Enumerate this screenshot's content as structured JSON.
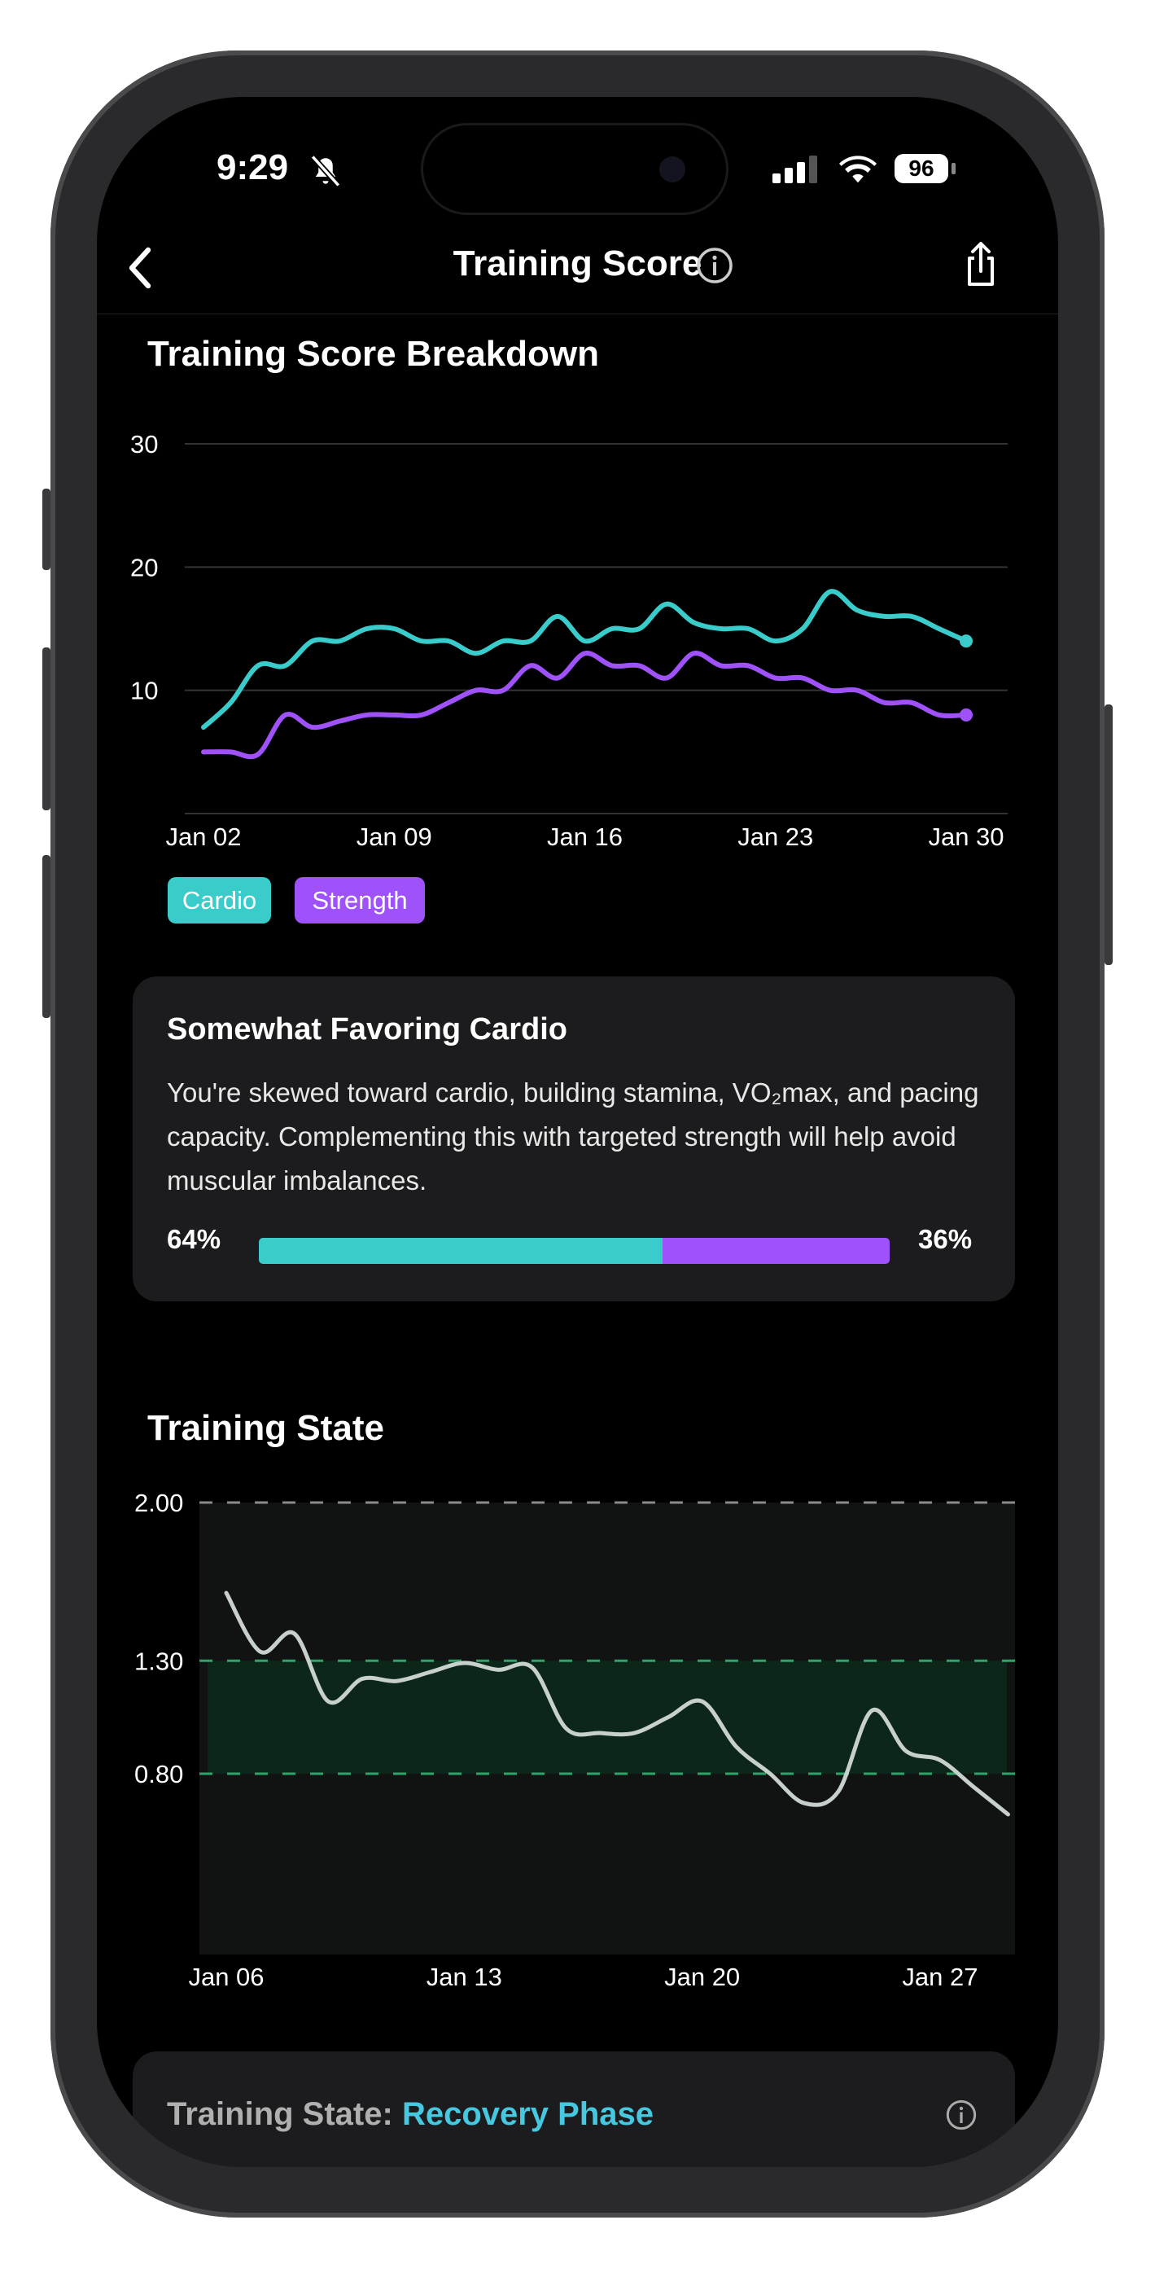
{
  "status_bar": {
    "time": "9:29",
    "battery": "96",
    "icons": [
      "bell-slash-icon",
      "signal-icon",
      "wifi-icon",
      "battery-icon"
    ]
  },
  "nav": {
    "title": "Training Score",
    "back_icon": "chevron-left-icon",
    "info_icon": "info-icon",
    "share_icon": "share-icon"
  },
  "breakdown": {
    "title": "Training Score Breakdown",
    "legend": [
      {
        "label": "Cardio",
        "color": "#3ACBCB"
      },
      {
        "label": "Strength",
        "color": "#A052FA"
      }
    ]
  },
  "balance_card": {
    "title": "Somewhat Favoring Cardio",
    "body": "You're skewed toward cardio, building stamina, VO₂max, and pacing capacity. Complementing this with targeted strength will help avoid muscular imbalances.",
    "cardio_pct_label": "64%",
    "strength_pct_label": "36%",
    "cardio_fraction": 0.64
  },
  "training_state": {
    "title": "Training State"
  },
  "state_card": {
    "label": "Training State:",
    "value": "Recovery Phase",
    "value_color": "#45C8E0"
  },
  "chart_data": [
    {
      "type": "line",
      "x": [
        "Jan 02",
        "Jan 03",
        "Jan 04",
        "Jan 05",
        "Jan 06",
        "Jan 07",
        "Jan 08",
        "Jan 09",
        "Jan 10",
        "Jan 11",
        "Jan 12",
        "Jan 13",
        "Jan 14",
        "Jan 15",
        "Jan 16",
        "Jan 17",
        "Jan 18",
        "Jan 19",
        "Jan 20",
        "Jan 21",
        "Jan 22",
        "Jan 23",
        "Jan 24",
        "Jan 25",
        "Jan 26",
        "Jan 27",
        "Jan 28",
        "Jan 29",
        "Jan 30"
      ],
      "xticks": [
        "Jan 02",
        "Jan 09",
        "Jan 16",
        "Jan 23",
        "Jan 30"
      ],
      "yticks": [
        "10",
        "20",
        "30"
      ],
      "ylim": [
        0,
        30
      ],
      "grid": true,
      "series": [
        {
          "name": "Cardio",
          "color": "#3ACBCB",
          "values": [
            7,
            9,
            12,
            12,
            14,
            14,
            15,
            15,
            14,
            14,
            13,
            14,
            14,
            16,
            14,
            15,
            15,
            17,
            15.5,
            15,
            15,
            14,
            15,
            18,
            16.5,
            16,
            16,
            15,
            14
          ]
        },
        {
          "name": "Strength",
          "color": "#A052FA",
          "values": [
            5,
            5,
            4.8,
            8,
            7,
            7.5,
            8,
            8,
            8,
            9,
            10,
            10,
            12,
            11,
            13,
            12,
            12,
            11,
            13,
            12,
            12,
            11,
            11,
            10,
            10,
            9,
            9,
            8,
            8
          ]
        }
      ]
    },
    {
      "type": "line",
      "x": [
        "Jan 06",
        "Jan 07",
        "Jan 08",
        "Jan 09",
        "Jan 10",
        "Jan 11",
        "Jan 12",
        "Jan 13",
        "Jan 14",
        "Jan 15",
        "Jan 16",
        "Jan 17",
        "Jan 18",
        "Jan 19",
        "Jan 20",
        "Jan 21",
        "Jan 22",
        "Jan 23",
        "Jan 24",
        "Jan 25",
        "Jan 26",
        "Jan 27",
        "Jan 28",
        "Jan 29"
      ],
      "xticks": [
        "Jan 06",
        "Jan 13",
        "Jan 20",
        "Jan 27"
      ],
      "yticks": [
        "0.80",
        "1.30",
        "2.00"
      ],
      "ylim": [
        0,
        2
      ],
      "band": [
        0.8,
        1.3
      ],
      "band_color": "#0C2619",
      "reference_lines": [
        {
          "value": 2.0,
          "color": "#8a8a8a"
        },
        {
          "value": 1.3,
          "color": "#2FA36A"
        },
        {
          "value": 0.8,
          "color": "#2FA36A"
        }
      ],
      "series": [
        {
          "color": "#C8D0CC",
          "values": [
            1.6,
            1.34,
            1.42,
            1.12,
            1.22,
            1.21,
            1.25,
            1.29,
            1.26,
            1.27,
            1.0,
            0.98,
            0.98,
            1.05,
            1.12,
            0.92,
            0.8,
            0.67,
            0.72,
            1.08,
            0.9,
            0.86,
            0.74,
            0.62
          ]
        }
      ]
    }
  ]
}
